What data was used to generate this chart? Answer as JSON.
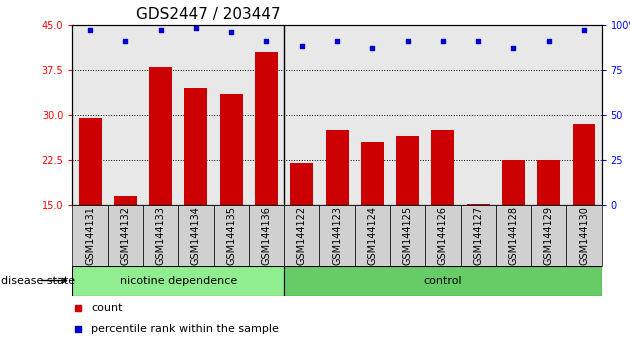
{
  "title": "GDS2447 / 203447",
  "categories": [
    "GSM144131",
    "GSM144132",
    "GSM144133",
    "GSM144134",
    "GSM144135",
    "GSM144136",
    "GSM144122",
    "GSM144123",
    "GSM144124",
    "GSM144125",
    "GSM144126",
    "GSM144127",
    "GSM144128",
    "GSM144129",
    "GSM144130"
  ],
  "bar_values": [
    29.5,
    16.5,
    38.0,
    34.5,
    33.5,
    40.5,
    22.0,
    27.5,
    25.5,
    26.5,
    27.5,
    15.3,
    22.5,
    22.5,
    28.5
  ],
  "percentile_values": [
    97,
    91,
    97,
    98,
    96,
    91,
    88,
    91,
    87,
    91,
    91,
    91,
    87,
    91,
    97
  ],
  "bar_color": "#cc0000",
  "dot_color": "#0000cc",
  "ylim_left": [
    15,
    45
  ],
  "ylim_right": [
    0,
    100
  ],
  "yticks_left": [
    15,
    22.5,
    30,
    37.5,
    45
  ],
  "yticks_right": [
    0,
    25,
    50,
    75,
    100
  ],
  "group1_label": "nicotine dependence",
  "group2_label": "control",
  "group1_count": 6,
  "group2_count": 9,
  "group1_color": "#90ee90",
  "group2_color": "#66cc66",
  "disease_state_label": "disease state",
  "legend_count_label": "count",
  "legend_percentile_label": "percentile rank within the sample",
  "tick_bg_color": "#d0d0d0",
  "background_color": "#e8e8e8",
  "title_fontsize": 11,
  "tick_fontsize": 7,
  "label_fontsize": 8
}
